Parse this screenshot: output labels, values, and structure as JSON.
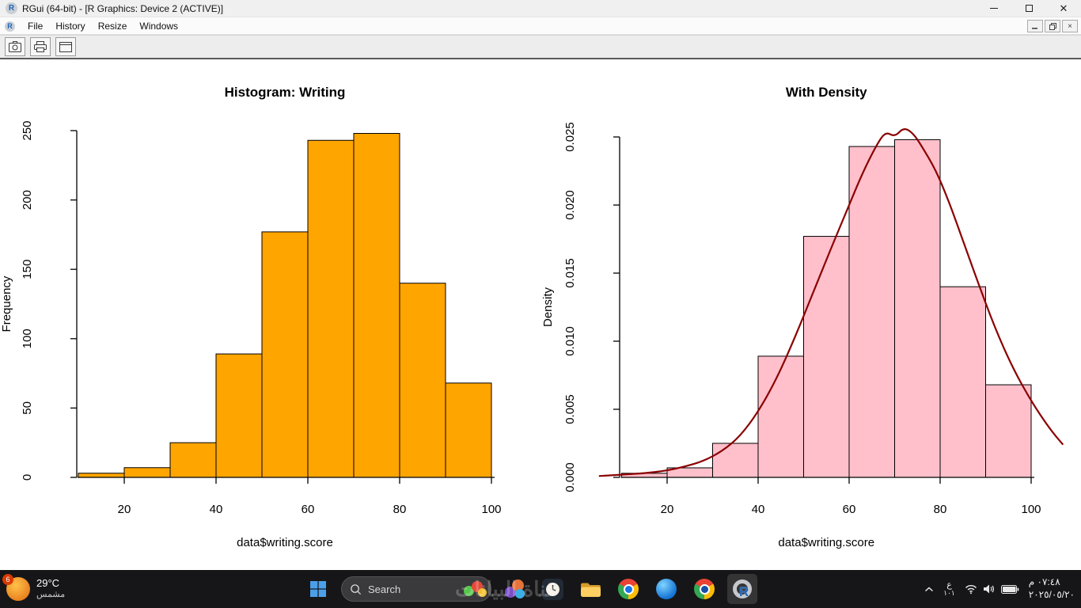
{
  "window": {
    "title": "RGui (64-bit) - [R Graphics: Device 2 (ACTIVE)]",
    "app_icon": "R",
    "mdi_icon": "R"
  },
  "menubar": {
    "items": [
      "File",
      "History",
      "Resize",
      "Windows"
    ]
  },
  "toolbar": {
    "buttons": [
      "copy-plot",
      "print-plot",
      "window"
    ]
  },
  "chart_data": [
    {
      "type": "bar",
      "title": "Histogram: Writing",
      "xlabel": "data$writing.score",
      "ylabel": "Frequency",
      "bin_start": 10,
      "bin_width": 10,
      "values": [
        3,
        7,
        25,
        89,
        177,
        243,
        248,
        140,
        68
      ],
      "bar_color": "#FFA500",
      "bar_border": "#000000",
      "xlim": [
        10,
        100
      ],
      "ylim": [
        0,
        250
      ],
      "xticks": [
        20,
        40,
        60,
        80,
        100
      ],
      "yticks": [
        0,
        50,
        100,
        150,
        200,
        250
      ],
      "ytick_labels": [
        "0",
        "50",
        "100",
        "150",
        "200",
        "250"
      ],
      "grid": false,
      "legend": "none"
    },
    {
      "type": "bar",
      "title": "With Density",
      "xlabel": "data$writing.score",
      "ylabel": "Density",
      "bin_start": 10,
      "bin_width": 10,
      "values": [
        0.0003,
        0.0007,
        0.0025,
        0.0089,
        0.0177,
        0.0243,
        0.0248,
        0.014,
        0.0068
      ],
      "bar_color": "#FFC0CB",
      "bar_border": "#000000",
      "line_color": "#8B0000",
      "xlim": [
        10,
        100
      ],
      "ylim": [
        0,
        0.025
      ],
      "xticks": [
        20,
        40,
        60,
        80,
        100
      ],
      "yticks": [
        0,
        0.005,
        0.01,
        0.015,
        0.02,
        0.025
      ],
      "ytick_labels": [
        "0.000",
        "0.005",
        "0.010",
        "0.015",
        "0.020",
        "0.025"
      ],
      "grid": false,
      "legend": "none",
      "density_curve": {
        "x": [
          5,
          10,
          15,
          20,
          24,
          28,
          32,
          36,
          40,
          44,
          48,
          52,
          56,
          60,
          63,
          66,
          68,
          70,
          72,
          74,
          76,
          79,
          82,
          85,
          88,
          92,
          96,
          100,
          104,
          107
        ],
        "y": [
          0.0001,
          0.0002,
          0.0003,
          0.0005,
          0.0008,
          0.0012,
          0.0019,
          0.003,
          0.0048,
          0.0072,
          0.0102,
          0.0135,
          0.0168,
          0.02,
          0.0224,
          0.0244,
          0.0254,
          0.025,
          0.0257,
          0.0253,
          0.0243,
          0.0226,
          0.0202,
          0.0174,
          0.0146,
          0.011,
          0.008,
          0.0056,
          0.0036,
          0.0024
        ]
      }
    }
  ],
  "taskbar": {
    "weather": {
      "badge": "6",
      "temp": "29°C",
      "condition": "مشمس"
    },
    "search": {
      "placeholder": "Search"
    },
    "apps": [
      "sticker-app",
      "clock-app",
      "file-explorer",
      "chrome",
      "blue-app",
      "chrome-profile",
      "rgui-active"
    ],
    "watermark": "قناة البيانات",
    "tray": {
      "language_line1": "ع",
      "language_line2": "١٠١",
      "time": "٠٧:٤٨ م",
      "date": "٢٠٢٥/٠٥/٢٠"
    }
  }
}
